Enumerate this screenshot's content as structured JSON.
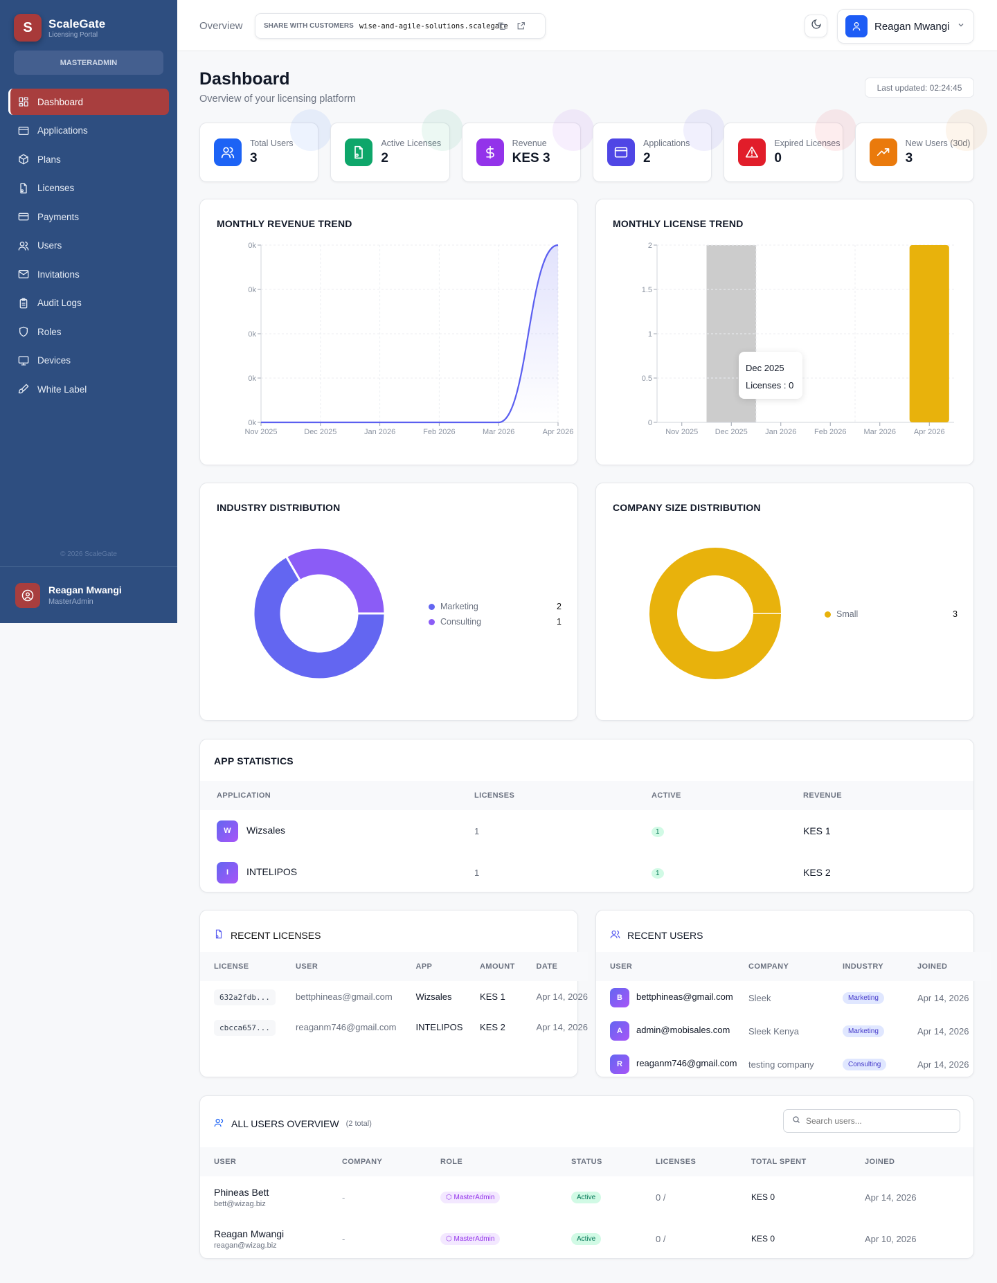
{
  "sidebar": {
    "brand": {
      "initial": "S",
      "name": "ScaleGate",
      "subtitle": "Licensing Portal"
    },
    "role": "MASTERADMIN",
    "items": [
      {
        "label": "Dashboard",
        "icon": "layout-grid-icon",
        "active": true
      },
      {
        "label": "Applications",
        "icon": "app-window-icon"
      },
      {
        "label": "Plans",
        "icon": "package-icon"
      },
      {
        "label": "Licenses",
        "icon": "file-key-icon"
      },
      {
        "label": "Payments",
        "icon": "credit-card-icon"
      },
      {
        "label": "Users",
        "icon": "users-icon"
      },
      {
        "label": "Invitations",
        "icon": "mail-icon"
      },
      {
        "label": "Audit Logs",
        "icon": "clipboard-icon"
      },
      {
        "label": "Roles",
        "icon": "shield-icon"
      },
      {
        "label": "Devices",
        "icon": "monitor-icon"
      },
      {
        "label": "White Label",
        "icon": "paintbrush-icon"
      }
    ],
    "copyright": "© 2026 ScaleGate",
    "user": {
      "name": "Reagan Mwangi",
      "role": "MasterAdmin"
    }
  },
  "header": {
    "breadcrumb": "Overview",
    "share_label": "SHARE WITH CUSTOMERS",
    "share_url": "wise-and-agile-solutions.scalegate",
    "user_name": "Reagan Mwangi"
  },
  "page": {
    "title": "Dashboard",
    "subtitle": "Overview of your licensing platform",
    "last_updated": "Last updated: 02:24:45"
  },
  "stats": [
    {
      "label": "Total Users",
      "value": "3",
      "color": "#1d63f5"
    },
    {
      "label": "Active Licenses",
      "value": "2",
      "color": "#0ea66a"
    },
    {
      "label": "Revenue",
      "value": "KES 3",
      "color": "#9333ea"
    },
    {
      "label": "Applications",
      "value": "2",
      "color": "#4f46e5"
    },
    {
      "label": "Expired Licenses",
      "value": "0",
      "color": "#e11d2a"
    },
    {
      "label": "New Users (30d)",
      "value": "3",
      "color": "#ea7a0c"
    }
  ],
  "chart_data": [
    {
      "type": "area",
      "title": "MONTHLY REVENUE TREND",
      "categories": [
        "Nov 2025",
        "Dec 2025",
        "Jan 2026",
        "Feb 2026",
        "Mar 2026",
        "Apr 2026"
      ],
      "values": [
        0,
        0,
        0,
        0,
        0,
        3
      ],
      "y_tick_labels": [
        "0k",
        "0k",
        "0k",
        "0k",
        "0k"
      ],
      "ylim": [
        0,
        3
      ],
      "grid": true,
      "color": "#5b5ff0"
    },
    {
      "type": "bar",
      "title": "MONTHLY LICENSE TREND",
      "categories": [
        "Nov 2025",
        "Dec 2025",
        "Jan 2026",
        "Feb 2026",
        "Mar 2026",
        "Apr 2026"
      ],
      "values": [
        0,
        0,
        0,
        0,
        0,
        2
      ],
      "y_ticks": [
        "0",
        "0.5",
        "1",
        "1.5",
        "2"
      ],
      "ylim": [
        0,
        2
      ],
      "grid": true,
      "color": "#e8b20c",
      "tooltip": {
        "title": "Dec 2025",
        "text": "Licenses : 0"
      }
    },
    {
      "type": "pie",
      "title": "INDUSTRY DISTRIBUTION",
      "donut": true,
      "slices": [
        {
          "name": "Marketing",
          "value": 2,
          "color": "#6366f1"
        },
        {
          "name": "Consulting",
          "value": 1,
          "color": "#8b5cf6"
        }
      ],
      "legend": "right"
    },
    {
      "type": "pie",
      "title": "COMPANY SIZE DISTRIBUTION",
      "donut": true,
      "slices": [
        {
          "name": "Small",
          "value": 3,
          "color": "#e8b20c"
        }
      ],
      "legend": "right"
    }
  ],
  "app_stats": {
    "title": "APP STATISTICS",
    "columns": [
      "APPLICATION",
      "LICENSES",
      "ACTIVE",
      "REVENUE"
    ],
    "rows": [
      {
        "initial": "W",
        "name": "Wizsales",
        "licenses": "1",
        "active": "1",
        "revenue": "KES 1"
      },
      {
        "initial": "I",
        "name": "INTELIPOS",
        "licenses": "1",
        "active": "1",
        "revenue": "KES 2"
      }
    ]
  },
  "recent_licenses": {
    "title": "RECENT LICENSES",
    "columns": [
      "LICENSE",
      "USER",
      "APP",
      "AMOUNT",
      "DATE"
    ],
    "rows": [
      {
        "license": "632a2fdb...",
        "user": "bettphineas@gmail.com",
        "app": "Wizsales",
        "amount": "KES 1",
        "date": "Apr 14, 2026"
      },
      {
        "license": "cbcca657...",
        "user": "reaganm746@gmail.com",
        "app": "INTELIPOS",
        "amount": "KES 2",
        "date": "Apr 14, 2026"
      }
    ]
  },
  "recent_users": {
    "title": "RECENT USERS",
    "columns": [
      "USER",
      "COMPANY",
      "INDUSTRY",
      "JOINED"
    ],
    "rows": [
      {
        "initial": "B",
        "email": "bettphineas@gmail.com",
        "company": "Sleek",
        "industry": "Marketing",
        "joined": "Apr 14, 2026"
      },
      {
        "initial": "A",
        "email": "admin@mobisales.com",
        "company": "Sleek Kenya",
        "industry": "Marketing",
        "joined": "Apr 14, 2026"
      },
      {
        "initial": "R",
        "email": "reaganm746@gmail.com",
        "company": "testing company",
        "industry": "Consulting",
        "joined": "Apr 14, 2026"
      }
    ]
  },
  "all_users": {
    "title": "ALL USERS OVERVIEW",
    "count": "(2 total)",
    "search_placeholder": "Search users...",
    "columns": [
      "USER",
      "COMPANY",
      "ROLE",
      "STATUS",
      "LICENSES",
      "TOTAL SPENT",
      "JOINED"
    ],
    "rows": [
      {
        "name": "Phineas Bett",
        "email": "bett@wizag.biz",
        "company": "-",
        "role": "MasterAdmin",
        "status": "Active",
        "licenses": "0 /",
        "spent": "KES 0",
        "joined": "Apr 14, 2026"
      },
      {
        "name": "Reagan Mwangi",
        "email": "reagan@wizag.biz",
        "company": "-",
        "role": "MasterAdmin",
        "status": "Active",
        "licenses": "0 /",
        "spent": "KES 0",
        "joined": "Apr 10, 2026"
      }
    ]
  }
}
